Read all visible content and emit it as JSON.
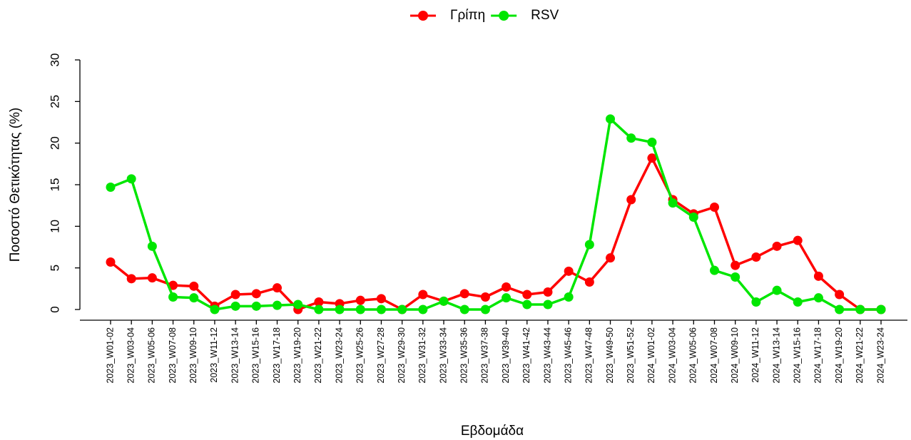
{
  "chart_data": {
    "type": "line",
    "xlabel": "Εβδομάδα",
    "ylabel": "Ποσοστό Θετικότητας (%)",
    "categories": [
      "2023_W01-02",
      "2023_W03-04",
      "2023_W05-06",
      "2023_W07-08",
      "2023_W09-10",
      "2023_W11-12",
      "2023_W13-14",
      "2023_W15-16",
      "2023_W17-18",
      "2023_W19-20",
      "2023_W21-22",
      "2023_W23-24",
      "2023_W25-26",
      "2023_W27-28",
      "2023_W29-30",
      "2023_W31-32",
      "2023_W33-34",
      "2023_W35-36",
      "2023_W37-38",
      "2023_W39-40",
      "2023_W41-42",
      "2023_W43-44",
      "2023_W45-46",
      "2023_W47-48",
      "2023_W49-50",
      "2023_W51-52",
      "2024_W01-02",
      "2024_W03-04",
      "2024_W05-06",
      "2024_W07-08",
      "2024_W09-10",
      "2024_W11-12",
      "2024_W13-14",
      "2024_W15-16",
      "2024_W17-18",
      "2024_W19-20",
      "2024_W21-22",
      "2024_W23-24"
    ],
    "series": [
      {
        "name": "Γρίπη",
        "color": "#ff0000",
        "values": [
          5.7,
          3.7,
          3.8,
          2.9,
          2.8,
          0.4,
          1.8,
          1.9,
          2.6,
          0,
          0.9,
          0.7,
          1.1,
          1.3,
          0,
          1.8,
          1.0,
          1.9,
          1.5,
          2.7,
          1.8,
          2.1,
          4.6,
          3.3,
          6.2,
          13.2,
          18.2,
          13.2,
          11.5,
          12.3,
          5.3,
          6.3,
          7.6,
          8.3,
          4.0,
          1.8,
          0,
          0
        ]
      },
      {
        "name": "RSV",
        "color": "#00e600",
        "values": [
          14.7,
          15.7,
          7.6,
          1.5,
          1.4,
          0,
          0.4,
          0.4,
          0.5,
          0.6,
          0,
          0,
          0,
          0,
          0,
          0,
          1.0,
          0,
          0,
          1.4,
          0.6,
          0.6,
          1.5,
          7.8,
          22.9,
          20.6,
          20.1,
          12.8,
          11.1,
          4.7,
          3.9,
          0.9,
          2.3,
          0.9,
          1.4,
          0,
          0,
          0
        ]
      }
    ],
    "ylim": [
      0,
      30
    ],
    "yticks": [
      0,
      5,
      10,
      15,
      20,
      25,
      30
    ],
    "legend": "top"
  }
}
